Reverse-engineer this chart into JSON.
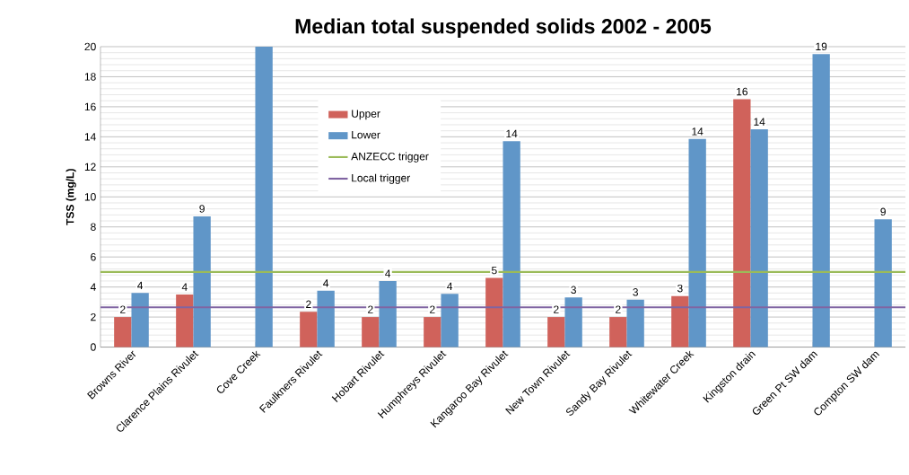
{
  "chart_data": {
    "type": "bar",
    "title": "Median total suspended solids 2002 - 2005",
    "ylabel": "TSS (mg/L)",
    "categories": [
      "Browns River",
      "Clarence Plains Rivulet",
      "Cove Creek",
      "Faulkners Rivulet",
      "Hobart Rivulet",
      "Humphreys Rivulet",
      "Kangaroo Bay Rivulet",
      "New Town Rivulet",
      "Sandy Bay Rivulet",
      "Whitewater Creek",
      "Kingston drain",
      "Green Pt SW dam",
      "Compton SW dam"
    ],
    "series": [
      {
        "name": "Upper",
        "color": "#d0625b",
        "values": [
          2.0,
          3.5,
          null,
          2.35,
          2.0,
          2.0,
          4.6,
          2.0,
          2.0,
          3.4,
          16.5,
          null,
          null
        ],
        "value_labels": [
          "2",
          "4",
          null,
          "2",
          "2",
          "2",
          "5",
          "2",
          "2",
          "3",
          "16",
          null,
          null
        ]
      },
      {
        "name": "Lower",
        "color": "#6096c8",
        "values": [
          3.6,
          8.7,
          20,
          3.75,
          4.4,
          3.55,
          13.7,
          3.3,
          3.15,
          13.85,
          14.5,
          19.5,
          8.5
        ],
        "value_labels": [
          "4",
          "9",
          null,
          "4",
          "4",
          "4",
          "14",
          "3",
          "3",
          "14",
          "14",
          "19",
          "9"
        ]
      }
    ],
    "ref_lines": [
      {
        "axis": "y",
        "value": 5,
        "label": "ANZECC trigger",
        "color": "#9bbb59"
      },
      {
        "axis": "y",
        "value": 2.65,
        "label": "Local trigger",
        "color": "#8064a2"
      }
    ],
    "ylim": [
      0,
      20
    ],
    "yticks": [
      0,
      2,
      4,
      6,
      8,
      10,
      12,
      14,
      16,
      18,
      20
    ],
    "grid": "y",
    "legend": "top left"
  }
}
